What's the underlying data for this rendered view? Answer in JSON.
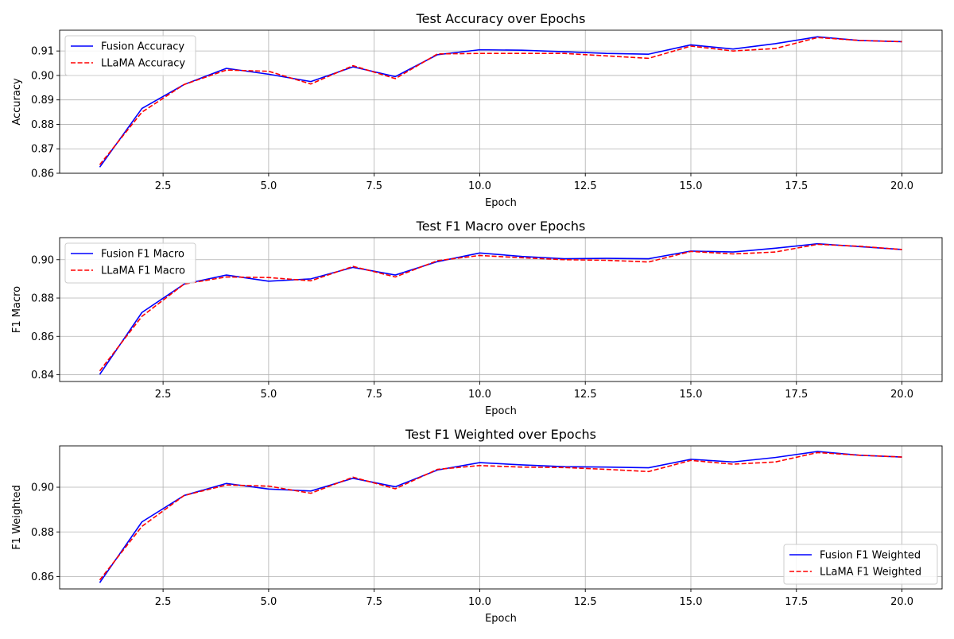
{
  "figure": {
    "background": "#ffffff",
    "grid": true,
    "grid_color": "#b0b0b0"
  },
  "chart_data": [
    {
      "type": "line",
      "title": "Test Accuracy over Epochs",
      "xlabel": "Epoch",
      "ylabel": "Accuracy",
      "xlim": [
        0.05,
        20.95
      ],
      "ylim": [
        0.86,
        0.9185
      ],
      "xticks": [
        2.5,
        5.0,
        7.5,
        10.0,
        12.5,
        15.0,
        17.5,
        20.0
      ],
      "xtick_labels": [
        "2.5",
        "5.0",
        "7.5",
        "10.0",
        "12.5",
        "15.0",
        "17.5",
        "20.0"
      ],
      "yticks": [
        0.86,
        0.87,
        0.88,
        0.89,
        0.9,
        0.91
      ],
      "ytick_labels": [
        "0.86",
        "0.87",
        "0.88",
        "0.89",
        "0.90",
        "0.91"
      ],
      "legend": "upper left",
      "x": [
        1,
        2,
        3,
        4,
        5,
        6,
        7,
        8,
        9,
        10,
        11,
        12,
        13,
        14,
        15,
        16,
        17,
        18,
        19,
        20
      ],
      "series": [
        {
          "name": "Fusion Accuracy",
          "color": "#0000ff",
          "style": "solid",
          "values": [
            0.8625,
            0.8865,
            0.8963,
            0.9029,
            0.9005,
            0.8975,
            0.9035,
            0.8995,
            0.9085,
            0.9105,
            0.9103,
            0.9097,
            0.909,
            0.9087,
            0.9125,
            0.9108,
            0.913,
            0.9158,
            0.9143,
            0.9138
          ]
        },
        {
          "name": "LLaMA Accuracy",
          "color": "#ff0000",
          "style": "dashed",
          "values": [
            0.8635,
            0.885,
            0.8963,
            0.9022,
            0.9017,
            0.8965,
            0.904,
            0.8987,
            0.9088,
            0.909,
            0.909,
            0.909,
            0.908,
            0.907,
            0.912,
            0.91,
            0.911,
            0.9155,
            0.9143,
            0.9138
          ]
        }
      ]
    },
    {
      "type": "line",
      "title": "Test F1 Macro over Epochs",
      "xlabel": "Epoch",
      "ylabel": "F1 Macro",
      "xlim": [
        0.05,
        20.95
      ],
      "ylim": [
        0.8365,
        0.9115
      ],
      "xticks": [
        2.5,
        5.0,
        7.5,
        10.0,
        12.5,
        15.0,
        17.5,
        20.0
      ],
      "xtick_labels": [
        "2.5",
        "5.0",
        "7.5",
        "10.0",
        "12.5",
        "15.0",
        "17.5",
        "20.0"
      ],
      "yticks": [
        0.84,
        0.86,
        0.88,
        0.9
      ],
      "ytick_labels": [
        "0.84",
        "0.86",
        "0.88",
        "0.90"
      ],
      "legend": "upper left",
      "x": [
        1,
        2,
        3,
        4,
        5,
        6,
        7,
        8,
        9,
        10,
        11,
        12,
        13,
        14,
        15,
        16,
        17,
        18,
        19,
        20
      ],
      "series": [
        {
          "name": "Fusion F1 Macro",
          "color": "#0000ff",
          "style": "solid",
          "values": [
            0.8402,
            0.8725,
            0.8873,
            0.892,
            0.8888,
            0.89,
            0.896,
            0.892,
            0.899,
            0.9035,
            0.9017,
            0.9005,
            0.9007,
            0.9005,
            0.9045,
            0.904,
            0.906,
            0.9083,
            0.9068,
            0.9053
          ]
        },
        {
          "name": "LLaMA F1 Macro",
          "color": "#ff0000",
          "style": "dashed",
          "values": [
            0.842,
            0.8705,
            0.8873,
            0.891,
            0.8907,
            0.889,
            0.8965,
            0.891,
            0.8995,
            0.9022,
            0.901,
            0.9,
            0.8997,
            0.8988,
            0.9043,
            0.903,
            0.904,
            0.908,
            0.907,
            0.9053
          ]
        }
      ]
    },
    {
      "type": "line",
      "title": "Test F1 Weighted over Epochs",
      "xlabel": "Epoch",
      "ylabel": "F1 Weighted",
      "xlim": [
        0.05,
        20.95
      ],
      "ylim": [
        0.8545,
        0.9185
      ],
      "xticks": [
        2.5,
        5.0,
        7.5,
        10.0,
        12.5,
        15.0,
        17.5,
        20.0
      ],
      "xtick_labels": [
        "2.5",
        "5.0",
        "7.5",
        "10.0",
        "12.5",
        "15.0",
        "17.5",
        "20.0"
      ],
      "yticks": [
        0.86,
        0.88,
        0.9
      ],
      "ytick_labels": [
        "0.86",
        "0.88",
        "0.90"
      ],
      "legend": "lower right",
      "x": [
        1,
        2,
        3,
        4,
        5,
        6,
        7,
        8,
        9,
        10,
        11,
        12,
        13,
        14,
        15,
        16,
        17,
        18,
        19,
        20
      ],
      "series": [
        {
          "name": "Fusion F1 Weighted",
          "color": "#0000ff",
          "style": "solid",
          "values": [
            0.8573,
            0.8845,
            0.8963,
            0.9017,
            0.8992,
            0.8983,
            0.904,
            0.9002,
            0.9077,
            0.911,
            0.91,
            0.9092,
            0.909,
            0.9087,
            0.9125,
            0.9113,
            0.9133,
            0.916,
            0.9143,
            0.9135
          ]
        },
        {
          "name": "LLaMA F1 Weighted",
          "color": "#ff0000",
          "style": "dashed",
          "values": [
            0.8585,
            0.8825,
            0.8963,
            0.901,
            0.9005,
            0.8973,
            0.9045,
            0.8993,
            0.908,
            0.9097,
            0.909,
            0.9088,
            0.908,
            0.907,
            0.912,
            0.9103,
            0.9113,
            0.9155,
            0.9143,
            0.9135
          ]
        }
      ]
    }
  ]
}
